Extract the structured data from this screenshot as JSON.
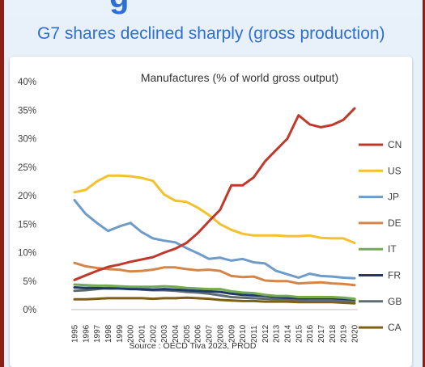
{
  "slide": {
    "top_heading_fragment": "g",
    "heading": "G7 shares declined sharply (gross production)"
  },
  "chart_data": {
    "type": "line",
    "title": "Manufactures (% of world gross output)",
    "source": "Source : OECD Tiva 2023, PROD",
    "xlabel": "",
    "ylabel": "",
    "ylim": [
      0,
      40
    ],
    "yticks": [
      "0%",
      "5%",
      "10%",
      "15%",
      "20%",
      "25%",
      "30%",
      "35%",
      "40%"
    ],
    "grid": false,
    "legend_position": "right",
    "x": [
      "1995",
      "1996",
      "1997",
      "1998",
      "1999",
      "2000",
      "2001",
      "2002",
      "2003",
      "2004",
      "2005",
      "2006",
      "2007",
      "2008",
      "2009",
      "2010",
      "2011",
      "2012",
      "2013",
      "2014",
      "2015",
      "2016",
      "2017",
      "2018",
      "2019",
      "2020"
    ],
    "series": [
      {
        "name": "CN",
        "color": "#c0392b",
        "values": [
          5.2,
          6.0,
          6.8,
          7.5,
          7.9,
          8.4,
          8.8,
          9.2,
          10.0,
          10.7,
          11.7,
          13.4,
          15.5,
          17.5,
          21.8,
          21.8,
          23.2,
          26.0,
          28.0,
          30.0,
          34.1,
          32.5,
          32.0,
          32.4,
          33.3,
          35.3
        ]
      },
      {
        "name": "US",
        "color": "#f2c12e",
        "values": [
          20.6,
          21.0,
          22.5,
          23.5,
          23.5,
          23.4,
          23.1,
          22.6,
          20.2,
          19.1,
          18.9,
          17.9,
          16.6,
          15.0,
          14.0,
          13.3,
          13.0,
          13.0,
          13.0,
          12.9,
          12.9,
          13.0,
          12.6,
          12.5,
          12.5,
          11.7
        ]
      },
      {
        "name": "JP",
        "color": "#6e9bc7",
        "values": [
          19.2,
          16.8,
          15.2,
          13.8,
          14.6,
          15.2,
          13.6,
          12.5,
          12.1,
          11.8,
          10.8,
          9.9,
          8.9,
          9.1,
          8.6,
          8.9,
          8.3,
          8.1,
          6.8,
          6.2,
          5.6,
          6.3,
          5.9,
          5.8,
          5.6,
          5.5
        ]
      },
      {
        "name": "DE",
        "color": "#d4854a",
        "values": [
          8.2,
          7.6,
          7.3,
          7.1,
          7.0,
          6.7,
          6.8,
          7.0,
          7.4,
          7.4,
          7.1,
          6.9,
          7.0,
          6.8,
          5.9,
          5.7,
          5.8,
          5.1,
          5.0,
          5.0,
          4.6,
          4.7,
          4.8,
          4.6,
          4.5,
          4.3
        ]
      },
      {
        "name": "IT",
        "color": "#74ab51",
        "values": [
          4.4,
          4.3,
          4.2,
          4.2,
          4.1,
          4.0,
          4.0,
          4.0,
          4.1,
          4.0,
          3.8,
          3.7,
          3.6,
          3.6,
          3.2,
          3.0,
          2.9,
          2.6,
          2.4,
          2.4,
          2.2,
          2.2,
          2.2,
          2.2,
          2.1,
          1.9
        ]
      },
      {
        "name": "FR",
        "color": "#1f3864",
        "values": [
          3.9,
          3.8,
          3.8,
          3.7,
          3.7,
          3.6,
          3.6,
          3.5,
          3.6,
          3.5,
          3.4,
          3.3,
          3.2,
          3.1,
          2.8,
          2.6,
          2.5,
          2.4,
          2.2,
          2.1,
          2.0,
          2.0,
          2.0,
          2.0,
          1.9,
          1.8
        ]
      },
      {
        "name": "GB",
        "color": "#5f6b73",
        "values": [
          3.3,
          3.4,
          3.6,
          3.8,
          3.8,
          3.7,
          3.5,
          3.4,
          3.4,
          3.3,
          3.1,
          3.0,
          2.8,
          2.5,
          2.2,
          2.1,
          2.0,
          1.9,
          1.8,
          1.8,
          1.7,
          1.6,
          1.6,
          1.6,
          1.6,
          1.5
        ]
      },
      {
        "name": "CA",
        "color": "#7d6014",
        "values": [
          1.8,
          1.8,
          1.9,
          2.0,
          2.0,
          2.0,
          2.0,
          1.9,
          2.0,
          2.0,
          2.1,
          2.0,
          1.9,
          1.7,
          1.6,
          1.5,
          1.5,
          1.4,
          1.4,
          1.4,
          1.3,
          1.3,
          1.3,
          1.3,
          1.2,
          1.1
        ]
      }
    ]
  }
}
